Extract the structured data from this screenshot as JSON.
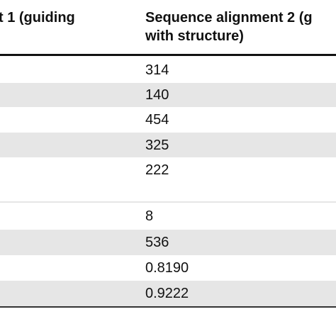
{
  "table": {
    "header": {
      "col_left": "t 1 (guiding",
      "col_right_line1": "Sequence alignment 2 (g",
      "col_right_line2": "with structure)"
    },
    "rows": [
      {
        "value": "314",
        "shaded": false
      },
      {
        "value": "140",
        "shaded": true
      },
      {
        "value": "454",
        "shaded": false
      },
      {
        "value": "325",
        "shaded": true
      },
      {
        "value": "222",
        "shaded": false
      },
      {
        "value": "",
        "shaded": true
      },
      {
        "value": "8",
        "shaded": false
      },
      {
        "value": "536",
        "shaded": true
      },
      {
        "value": "0.8190",
        "shaded": false
      },
      {
        "value": "0.9222",
        "shaded": true
      }
    ]
  }
}
